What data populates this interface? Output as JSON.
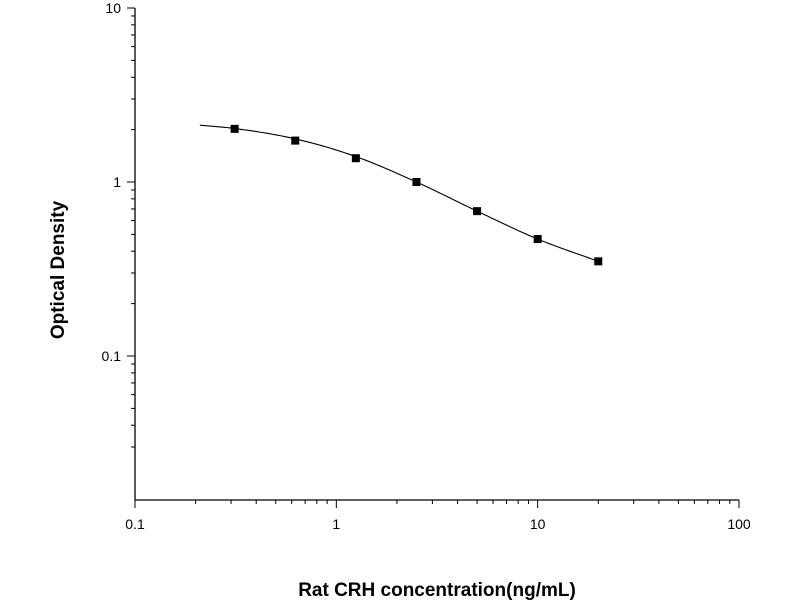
{
  "chart_data": {
    "type": "scatter",
    "title": "",
    "xlabel": "Rat CRH concentration(ng/mL)",
    "ylabel": "Optical Density",
    "x_scale": "log",
    "y_scale": "log",
    "xlim": [
      0.1,
      100
    ],
    "ylim": [
      0.03,
      10
    ],
    "x_tick_labels": [
      "0.1",
      "1",
      "10",
      "100"
    ],
    "y_tick_labels": [
      "0.1",
      "1",
      "10"
    ],
    "grid": false,
    "legend": "none",
    "series": [
      {
        "marker": "square",
        "x": [
          0.3125,
          0.625,
          1.25,
          2.5,
          5,
          10,
          20
        ],
        "y": [
          2.02,
          1.73,
          1.37,
          1.0,
          0.68,
          0.47,
          0.35
        ]
      }
    ],
    "fit_curve": {
      "style": "smooth line",
      "x": [
        0.21,
        0.3125,
        0.625,
        1.25,
        2.5,
        5,
        10,
        20
      ],
      "y": [
        2.12,
        2.03,
        1.77,
        1.4,
        1.0,
        0.68,
        0.47,
        0.35
      ]
    },
    "colors": {
      "axis": "#000000",
      "markers": "#000000",
      "curve": "#000000"
    }
  }
}
